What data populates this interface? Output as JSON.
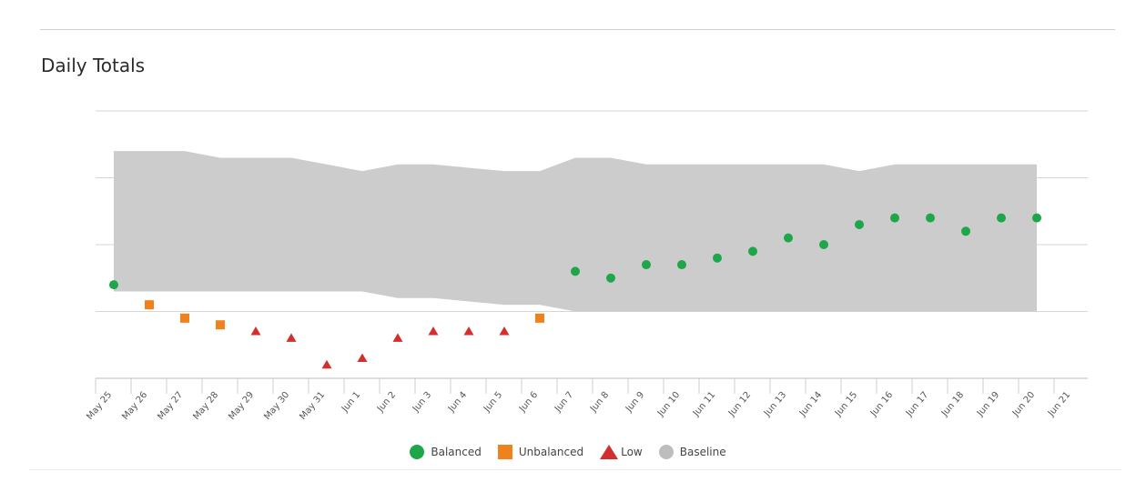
{
  "panel": {
    "title": "Daily Totals"
  },
  "legend": {
    "items": [
      {
        "label": "Balanced",
        "shape": "circle",
        "color": "#1ea64a"
      },
      {
        "label": "Unbalanced",
        "shape": "square",
        "color": "#f0821e"
      },
      {
        "label": "Low",
        "shape": "triangle",
        "color": "#d32f2f"
      },
      {
        "label": "Baseline",
        "shape": "circle",
        "color": "#bdbdbd"
      }
    ]
  },
  "chart_data": {
    "type": "scatter",
    "title": "Daily Totals",
    "xlabel": "",
    "ylabel": "",
    "categories": [
      "May 25",
      "May 26",
      "May 27",
      "May 28",
      "May 29",
      "May 30",
      "May 31",
      "Jun 1",
      "Jun 2",
      "Jun 3",
      "Jun 4",
      "Jun 5",
      "Jun 6",
      "Jun 7",
      "Jun 8",
      "Jun 9",
      "Jun 10",
      "Jun 11",
      "Jun 12",
      "Jun 13",
      "Jun 14",
      "Jun 15",
      "Jun 16",
      "Jun 17",
      "Jun 18",
      "Jun 19",
      "Jun 20",
      "Jun 21"
    ],
    "ylim": [
      0,
      4
    ],
    "gridlines": [
      0,
      1,
      2,
      3,
      4
    ],
    "y_tick_labels_shown": false,
    "grid": true,
    "legend_position": "bottom-center",
    "baseline": {
      "name": "Baseline",
      "color": "#cccccc",
      "upper": [
        3.4,
        3.4,
        3.4,
        3.3,
        3.3,
        3.3,
        3.2,
        3.1,
        3.2,
        3.2,
        3.15,
        3.1,
        3.1,
        3.3,
        3.3,
        3.2,
        3.2,
        3.2,
        3.2,
        3.2,
        3.2,
        3.1,
        3.2,
        3.2,
        3.2,
        3.2,
        3.2
      ],
      "lower": [
        1.3,
        1.3,
        1.3,
        1.3,
        1.3,
        1.3,
        1.3,
        1.3,
        1.2,
        1.2,
        1.15,
        1.1,
        1.1,
        1.0,
        1.0,
        1.0,
        1.0,
        1.0,
        1.0,
        1.0,
        1.0,
        1.0,
        1.0,
        1.0,
        1.0,
        1.0,
        1.0
      ]
    },
    "series": [
      {
        "name": "Balanced",
        "shape": "circle",
        "color": "#1ea64a",
        "points": [
          [
            0,
            1.4
          ],
          [
            13,
            1.6
          ],
          [
            14,
            1.5
          ],
          [
            15,
            1.7
          ],
          [
            16,
            1.7
          ],
          [
            17,
            1.8
          ],
          [
            18,
            1.9
          ],
          [
            19,
            2.1
          ],
          [
            20,
            2.0
          ],
          [
            21,
            2.3
          ],
          [
            22,
            2.4
          ],
          [
            23,
            2.4
          ],
          [
            24,
            2.2
          ],
          [
            25,
            2.4
          ],
          [
            26,
            2.4
          ]
        ]
      },
      {
        "name": "Unbalanced",
        "shape": "square",
        "color": "#f0821e",
        "points": [
          [
            1,
            1.1
          ],
          [
            2,
            0.9
          ],
          [
            3,
            0.8
          ],
          [
            12,
            0.9
          ]
        ]
      },
      {
        "name": "Low",
        "shape": "triangle",
        "color": "#d32f2f",
        "points": [
          [
            4,
            0.7
          ],
          [
            5,
            0.6
          ],
          [
            6,
            0.2
          ],
          [
            7,
            0.3
          ],
          [
            8,
            0.6
          ],
          [
            9,
            0.7
          ],
          [
            10,
            0.7
          ],
          [
            11,
            0.7
          ]
        ]
      }
    ]
  }
}
